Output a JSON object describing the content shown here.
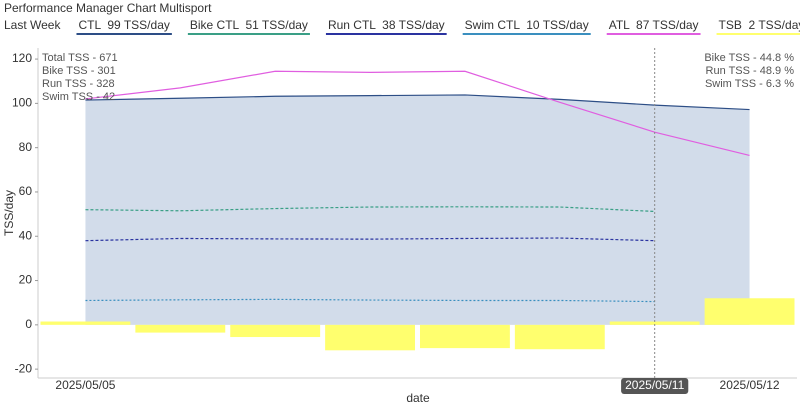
{
  "chart_data": {
    "type": "line",
    "title": "Performance Manager Chart Multisport",
    "legend_title": "Last Week",
    "x_label": "date",
    "y_label": "TSS/day",
    "categories": [
      "2025/05/05",
      null,
      null,
      null,
      null,
      null,
      "2025/05/11",
      "2025/05/12"
    ],
    "crosshair_index": 6,
    "ylim": [
      -24,
      125
    ],
    "yticks": [
      -20,
      0,
      20,
      40,
      60,
      80,
      100,
      120
    ],
    "grid": false,
    "series": [
      {
        "name": "CTL  99 TSS/day",
        "color": "#2d4e86",
        "fill": "#d2dcea",
        "kind": "area",
        "values": [
          101.5,
          102.3,
          103.2,
          103.5,
          103.8,
          101.8,
          99.2,
          97.2
        ]
      },
      {
        "name": "Bike CTL  51 TSS/day",
        "color": "#3a9f86",
        "kind": "line",
        "dash": "dashed",
        "values": [
          52,
          51.5,
          52.5,
          53.2,
          53.3,
          53.2,
          51.2,
          null
        ]
      },
      {
        "name": "Run CTL  38 TSS/day",
        "color": "#2a33a0",
        "kind": "line",
        "dash": "dashed",
        "values": [
          38,
          39,
          38.8,
          38.7,
          39,
          39.2,
          38,
          null
        ]
      },
      {
        "name": "Swim CTL  10 TSS/day",
        "color": "#3a8fbf",
        "kind": "line",
        "dash": "dotted",
        "values": [
          11,
          11.3,
          11.5,
          11.2,
          11,
          11,
          10.5,
          null
        ]
      },
      {
        "name": "ATL  87 TSS/day",
        "color": "#e05ee0",
        "kind": "line",
        "values": [
          102,
          107,
          114.5,
          114,
          114.5,
          100.5,
          87,
          76.5
        ]
      },
      {
        "name": "TSB  2 TSS/day",
        "color": "#ffff6e",
        "kind": "bar",
        "values": [
          1.5,
          -3.5,
          -5.5,
          -11.5,
          -10.5,
          -11,
          1.5,
          12
        ]
      }
    ],
    "annotations_left": [
      "Total TSS - 671",
      "Bike TSS - 301",
      "Run TSS - 328",
      "Swim TSS - 42"
    ],
    "annotations_right": [
      "Bike TSS - 44.8 %",
      "Run TSS - 48.9 %",
      "Swim TSS - 6.3 %"
    ]
  }
}
